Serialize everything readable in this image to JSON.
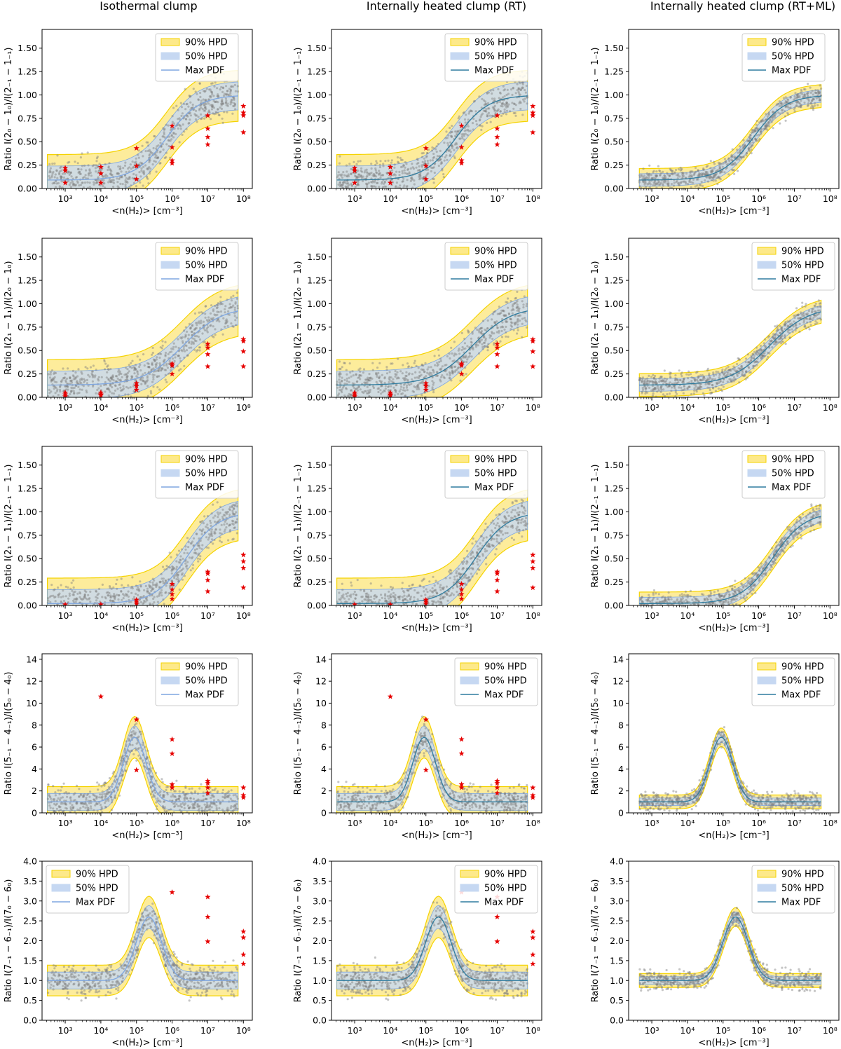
{
  "column_titles": [
    "Isothermal clump",
    "Internally heated clump (RT)",
    "Internally heated clump (RT+ML)"
  ],
  "colors": {
    "hpd90_fill": "#fde98a",
    "hpd90_line": "#f5d300",
    "hpd50_fill": "#c6d8f2",
    "maxpdf_line_blue": "#7ea6e0",
    "maxpdf_line_teal": "#2f7c9f",
    "model_points": "#7f7f7f",
    "observations": "#e60000"
  },
  "legend": [
    "90% HPD",
    "50% HPD",
    "Max PDF"
  ],
  "chart_data": [
    {
      "type": "line",
      "row": 0,
      "ylabel": "Ratio I(2₀ − 1₀)/I(2₋₁ − 1₋₁)",
      "ylim": [
        0,
        1.7
      ],
      "yticks": [
        "0.00",
        "0.25",
        "0.50",
        "0.75",
        "1.00",
        "1.25",
        "1.50"
      ],
      "ytick_values": [
        0,
        0.25,
        0.5,
        0.75,
        1.0,
        1.25,
        1.5
      ],
      "xlabel": "<n(H₂)> [cm⁻³]",
      "xlim_log10": [
        2.35,
        8.25
      ],
      "xticks": [
        "10³",
        "10⁴",
        "10⁵",
        "10⁶",
        "10⁷",
        "10⁸"
      ],
      "xtick_log10": [
        3,
        4,
        5,
        6,
        7,
        8
      ],
      "model": {
        "kind": "sigmoid",
        "low": 0.09,
        "high": 1.0,
        "center": 5.85,
        "width": 0.45
      },
      "observations": [
        {
          "x": 3,
          "y": 0.22
        },
        {
          "x": 3,
          "y": 0.19
        },
        {
          "x": 3,
          "y": 0.06
        },
        {
          "x": 4,
          "y": 0.23
        },
        {
          "x": 4,
          "y": 0.16
        },
        {
          "x": 4,
          "y": 0.06
        },
        {
          "x": 5,
          "y": 0.43
        },
        {
          "x": 5,
          "y": 0.24
        },
        {
          "x": 5,
          "y": 0.1
        },
        {
          "x": 6,
          "y": 0.67
        },
        {
          "x": 6,
          "y": 0.44
        },
        {
          "x": 6,
          "y": 0.3
        },
        {
          "x": 6,
          "y": 0.27
        },
        {
          "x": 7,
          "y": 0.78
        },
        {
          "x": 7,
          "y": 0.64
        },
        {
          "x": 7,
          "y": 0.55
        },
        {
          "x": 7,
          "y": 0.47
        },
        {
          "x": 8,
          "y": 0.88
        },
        {
          "x": 8,
          "y": 0.81
        },
        {
          "x": 8,
          "y": 0.78
        },
        {
          "x": 8,
          "y": 0.6
        }
      ]
    },
    {
      "type": "line",
      "row": 1,
      "ylabel": "Ratio I(2₁ − 1₁)/I(2₀ − 1₀)",
      "ylim": [
        0,
        1.7
      ],
      "yticks": [
        "0.00",
        "0.25",
        "0.50",
        "0.75",
        "1.00",
        "1.25",
        "1.50"
      ],
      "ytick_values": [
        0,
        0.25,
        0.5,
        0.75,
        1.0,
        1.25,
        1.5
      ],
      "xlabel": "<n(H₂)> [cm⁻³]",
      "xlim_log10": [
        2.35,
        8.25
      ],
      "xticks": [
        "10³",
        "10⁴",
        "10⁵",
        "10⁶",
        "10⁷",
        "10⁸"
      ],
      "xtick_log10": [
        3,
        4,
        5,
        6,
        7,
        8
      ],
      "model": {
        "kind": "sigmoid",
        "low": 0.13,
        "high": 0.97,
        "center": 6.3,
        "width": 0.55
      },
      "observations": [
        {
          "x": 3,
          "y": 0.05
        },
        {
          "x": 3,
          "y": 0.03
        },
        {
          "x": 3,
          "y": 0.01
        },
        {
          "x": 4,
          "y": 0.05
        },
        {
          "x": 4,
          "y": 0.03
        },
        {
          "x": 4,
          "y": 0.02
        },
        {
          "x": 5,
          "y": 0.15
        },
        {
          "x": 5,
          "y": 0.12
        },
        {
          "x": 5,
          "y": 0.08
        },
        {
          "x": 6,
          "y": 0.36
        },
        {
          "x": 6,
          "y": 0.34
        },
        {
          "x": 6,
          "y": 0.25
        },
        {
          "x": 7,
          "y": 0.57
        },
        {
          "x": 7,
          "y": 0.53
        },
        {
          "x": 7,
          "y": 0.46
        },
        {
          "x": 7,
          "y": 0.33
        },
        {
          "x": 8,
          "y": 0.62
        },
        {
          "x": 8,
          "y": 0.6
        },
        {
          "x": 8,
          "y": 0.49
        },
        {
          "x": 8,
          "y": 0.33
        }
      ]
    },
    {
      "type": "line",
      "row": 2,
      "ylabel": "Ratio I(2₁ − 1₁)/I(2₋₁ − 1₋₁)",
      "ylim": [
        0,
        1.7
      ],
      "yticks": [
        "0.00",
        "0.25",
        "0.50",
        "0.75",
        "1.00",
        "1.25",
        "1.50"
      ],
      "ytick_values": [
        0,
        0.25,
        0.5,
        0.75,
        1.0,
        1.25,
        1.5
      ],
      "xlabel": "<n(H₂)> [cm⁻³]",
      "xlim_log10": [
        2.35,
        8.25
      ],
      "xticks": [
        "10³",
        "10⁴",
        "10⁵",
        "10⁶",
        "10⁷",
        "10⁸"
      ],
      "xtick_log10": [
        3,
        4,
        5,
        6,
        7,
        8
      ],
      "model": {
        "kind": "sigmoid",
        "low": 0.02,
        "high": 1.0,
        "center": 6.4,
        "width": 0.45
      },
      "observations": [
        {
          "x": 3,
          "y": 0.01
        },
        {
          "x": 4,
          "y": 0.01
        },
        {
          "x": 5,
          "y": 0.06
        },
        {
          "x": 5,
          "y": 0.04
        },
        {
          "x": 5,
          "y": 0.02
        },
        {
          "x": 6,
          "y": 0.23
        },
        {
          "x": 6,
          "y": 0.17
        },
        {
          "x": 6,
          "y": 0.12
        },
        {
          "x": 6,
          "y": 0.07
        },
        {
          "x": 7,
          "y": 0.36
        },
        {
          "x": 7,
          "y": 0.34
        },
        {
          "x": 7,
          "y": 0.27
        },
        {
          "x": 7,
          "y": 0.15
        },
        {
          "x": 8,
          "y": 0.54
        },
        {
          "x": 8,
          "y": 0.47
        },
        {
          "x": 8,
          "y": 0.4
        },
        {
          "x": 8,
          "y": 0.19
        }
      ]
    },
    {
      "type": "line",
      "row": 3,
      "ylabel": "Ratio I(5₋₁ − 4₋₁)/I(5₀ − 4₀)",
      "ylim": [
        0,
        14.5
      ],
      "yticks": [
        "0",
        "2",
        "4",
        "6",
        "8",
        "10",
        "12",
        "14"
      ],
      "ytick_values": [
        0,
        2,
        4,
        6,
        8,
        10,
        12,
        14
      ],
      "xlabel": "<n(H₂)> [cm⁻³]",
      "xlim_log10": [
        2.35,
        8.25
      ],
      "xticks": [
        "10³",
        "10⁴",
        "10⁵",
        "10⁶",
        "10⁷",
        "10⁸"
      ],
      "xtick_log10": [
        3,
        4,
        5,
        6,
        7,
        8
      ],
      "model": {
        "kind": "peak",
        "base": 1.0,
        "peak": 6.9,
        "center": 4.95,
        "width": 0.45
      },
      "observations": [
        {
          "x": 4,
          "y": 10.6
        },
        {
          "x": 5,
          "y": 8.5
        },
        {
          "x": 5,
          "y": 3.9
        },
        {
          "x": 6,
          "y": 6.7
        },
        {
          "x": 6,
          "y": 5.4
        },
        {
          "x": 6,
          "y": 2.6
        },
        {
          "x": 6,
          "y": 2.3
        },
        {
          "x": 7,
          "y": 2.9
        },
        {
          "x": 7,
          "y": 2.7
        },
        {
          "x": 7,
          "y": 2.3
        },
        {
          "x": 7,
          "y": 1.8
        },
        {
          "x": 8,
          "y": 2.3
        },
        {
          "x": 8,
          "y": 1.6
        },
        {
          "x": 8,
          "y": 1.4
        }
      ]
    },
    {
      "type": "line",
      "row": 4,
      "ylabel": "Ratio I(7₋₁ − 6₋₁)/I(7₀ − 6₀)",
      "ylim": [
        0,
        4.0
      ],
      "yticks": [
        "0.0",
        "0.5",
        "1.0",
        "1.5",
        "2.0",
        "2.5",
        "3.0",
        "3.5",
        "4.0"
      ],
      "ytick_values": [
        0,
        0.5,
        1.0,
        1.5,
        2.0,
        2.5,
        3.0,
        3.5,
        4.0
      ],
      "xlabel": "<n(H₂)> [cm⁻³]",
      "xlim_log10": [
        2.35,
        8.25
      ],
      "xticks": [
        "10³",
        "10⁴",
        "10⁵",
        "10⁶",
        "10⁷",
        "10⁸"
      ],
      "xtick_log10": [
        3,
        4,
        5,
        6,
        7,
        8
      ],
      "model": {
        "kind": "peak",
        "base": 1.0,
        "peak": 2.6,
        "center": 5.35,
        "width": 0.5
      },
      "observations": [
        {
          "x": 6,
          "y": 3.22
        },
        {
          "x": 7,
          "y": 3.1
        },
        {
          "x": 7,
          "y": 2.6
        },
        {
          "x": 7,
          "y": 1.98
        },
        {
          "x": 8,
          "y": 2.23
        },
        {
          "x": 8,
          "y": 2.08
        },
        {
          "x": 8,
          "y": 1.65
        },
        {
          "x": 8,
          "y": 1.42
        }
      ]
    }
  ]
}
